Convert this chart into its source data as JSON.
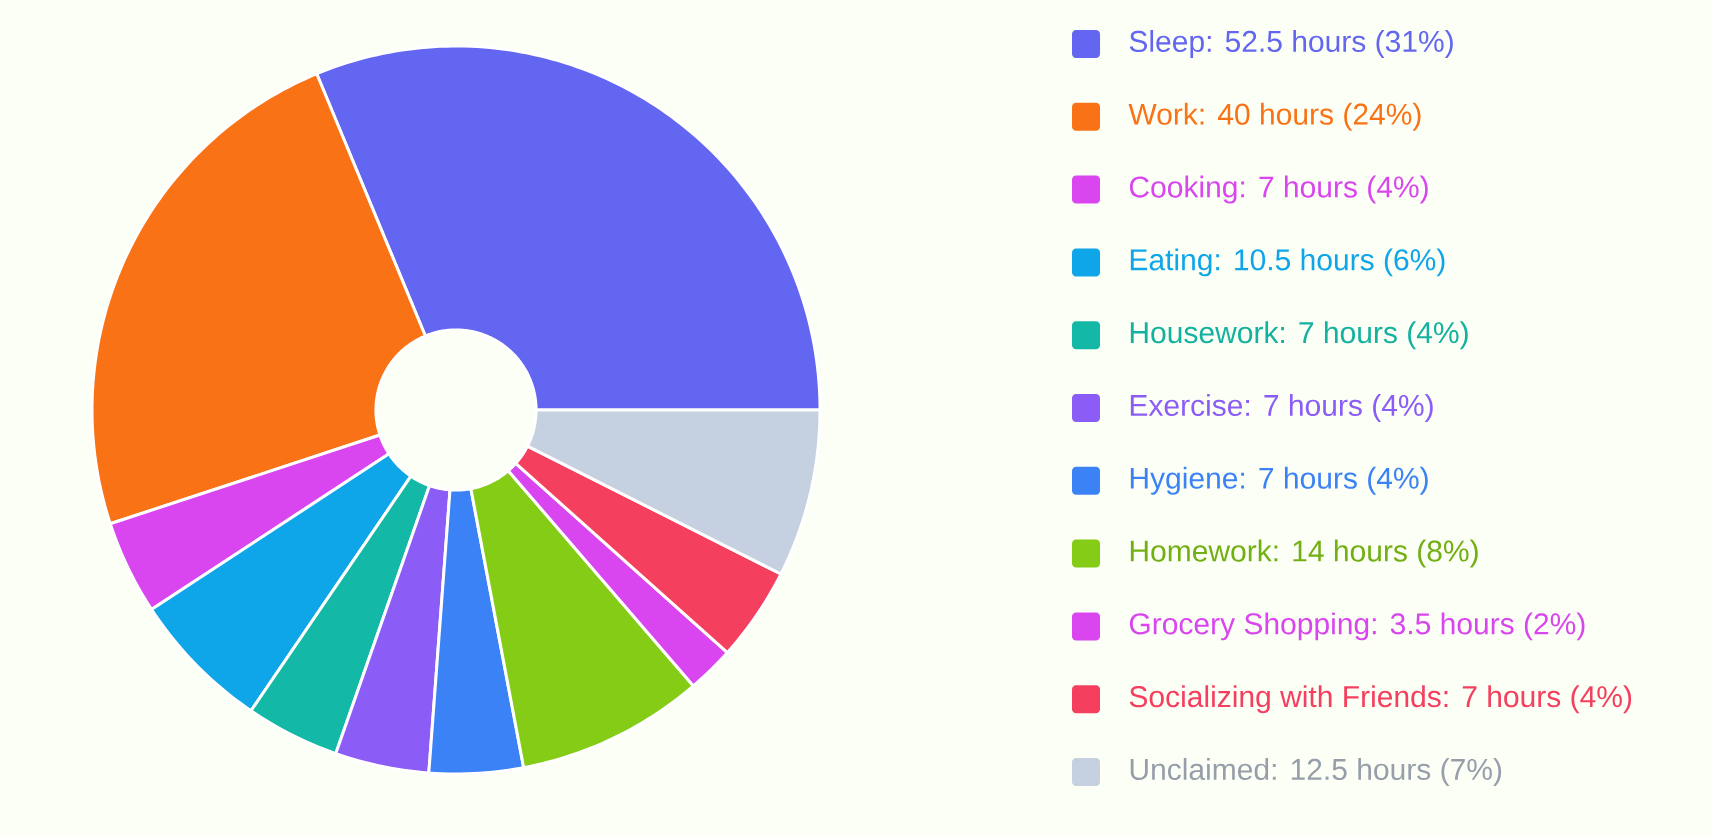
{
  "chart_data": {
    "type": "donut",
    "categories": [
      "Sleep: 52.5 hours (31%)",
      "Work: 40 hours (24%)",
      "Cooking: 7 hours (4%)",
      "Eating: 10.5 hours (6%)",
      "Housework: 7 hours (4%)",
      "Exercise: 7 hours (4%)",
      "Hygiene: 7 hours (4%)",
      "Homework: 14 hours (8%)",
      "Grocery Shopping: 3.5 hours (2%)",
      "Socializing with Friends: 7 hours (4%)",
      "Unclaimed: 12.5 hours (7%)"
    ],
    "values": [
      52.5,
      40,
      7,
      10.5,
      7,
      7,
      7,
      14,
      3.5,
      7,
      12.5
    ],
    "colors": [
      "#6366f1",
      "#f97316",
      "#d946ef",
      "#0ea5e9",
      "#14b8a6",
      "#8b5cf6",
      "#3b82f6",
      "#84cc16",
      "#d946ef",
      "#f43f5e",
      "#c5d0e0"
    ],
    "legend": "right"
  }
}
